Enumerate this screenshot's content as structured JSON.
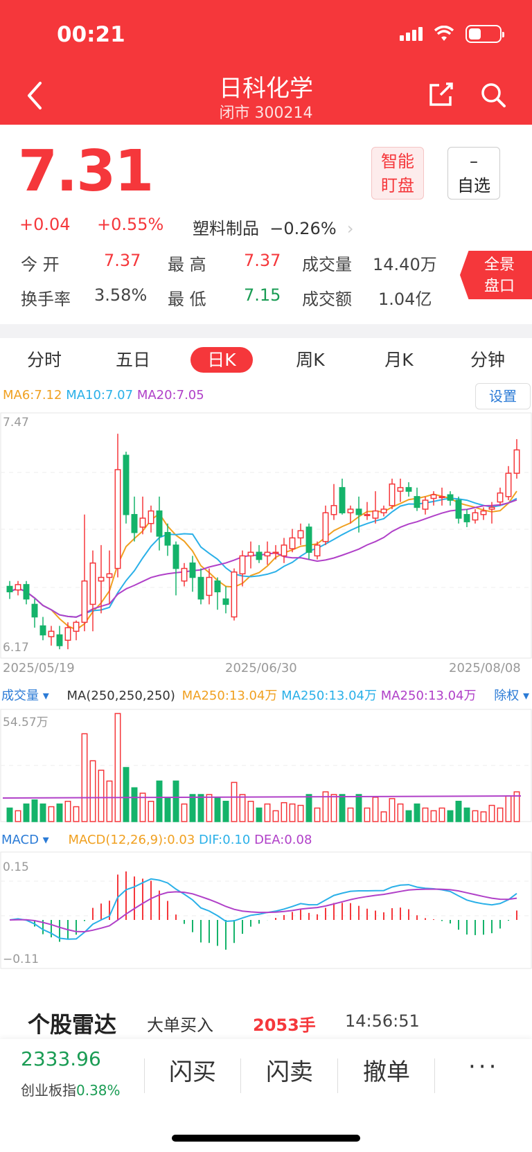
{
  "status": {
    "time": "00:21"
  },
  "header": {
    "title": "日科化学",
    "subtitle": "闭市 300214"
  },
  "quote": {
    "price": "7.31",
    "change": "+0.04",
    "change_pct": "+0.55%",
    "sector": "塑料制品",
    "sector_pct": "−0.26%",
    "smart_watch": [
      "智能",
      "盯盘"
    ],
    "watchlist": [
      "–",
      "自选"
    ],
    "open_label": "今  开",
    "open": "7.37",
    "high_label": "最  高",
    "high": "7.37",
    "vol_label": "成交量",
    "vol": "14.40万",
    "turnover_label": "换手率",
    "turnover": "3.58%",
    "low_label": "最  低",
    "low": "7.15",
    "amount_label": "成交额",
    "amount": "1.04亿",
    "panorama": [
      "全景",
      "盘口"
    ]
  },
  "tabs": [
    "分时",
    "五日",
    "日K",
    "周K",
    "月K",
    "分钟"
  ],
  "active_tab": 2,
  "ma": {
    "ma6": "MA6:7.12",
    "ma10": "MA10:7.07",
    "ma20": "MA20:7.05",
    "settings": "设置"
  },
  "volume_header": {
    "label": "成交量 ▾",
    "ma": "MA(250,250,250)",
    "ma1": "MA250:13.04万",
    "ma2": "MA250:13.04万",
    "ma3": "MA250:13.04万",
    "adjust": "除权 ▾"
  },
  "macd_header": {
    "label": "MACD ▾",
    "macd": "MACD(12,26,9):0.03",
    "dif": "DIF:0.10",
    "dea": "DEA:0.08"
  },
  "chart_data": {
    "type": "candlestick",
    "ylim": [
      6.17,
      7.47
    ],
    "y_labels": [
      "7.47",
      "6.17"
    ],
    "x_labels": [
      "2025/05/19",
      "2025/06/30",
      "2025/08/08"
    ],
    "volume_max_label": "54.57万",
    "macd_labels": [
      "0.15",
      "−0.11"
    ],
    "candles": [
      [
        6.55,
        6.58,
        6.48,
        6.52
      ],
      [
        6.53,
        6.58,
        6.5,
        6.56
      ],
      [
        6.56,
        6.58,
        6.45,
        6.48
      ],
      [
        6.45,
        6.48,
        6.32,
        6.38
      ],
      [
        6.33,
        6.38,
        6.25,
        6.28
      ],
      [
        6.27,
        6.33,
        6.22,
        6.3
      ],
      [
        6.28,
        6.33,
        6.2,
        6.22
      ],
      [
        6.25,
        6.35,
        6.2,
        6.32
      ],
      [
        6.3,
        6.36,
        6.25,
        6.35
      ],
      [
        6.35,
        6.95,
        6.3,
        6.58
      ],
      [
        6.45,
        6.75,
        6.3,
        6.68
      ],
      [
        6.58,
        6.78,
        6.4,
        6.6
      ],
      [
        6.6,
        6.75,
        6.45,
        6.62
      ],
      [
        6.65,
        7.4,
        6.6,
        7.2
      ],
      [
        7.28,
        7.3,
        6.9,
        6.95
      ],
      [
        6.95,
        7.05,
        6.8,
        6.85
      ],
      [
        6.88,
        7.05,
        6.84,
        6.93
      ],
      [
        6.9,
        7.0,
        6.85,
        6.97
      ],
      [
        6.97,
        7.05,
        6.75,
        6.83
      ],
      [
        6.85,
        6.9,
        6.72,
        6.78
      ],
      [
        6.78,
        6.8,
        6.5,
        6.65
      ],
      [
        6.58,
        6.68,
        6.55,
        6.65
      ],
      [
        6.68,
        6.72,
        6.52,
        6.6
      ],
      [
        6.6,
        6.65,
        6.45,
        6.48
      ],
      [
        6.5,
        6.65,
        6.45,
        6.6
      ],
      [
        6.58,
        6.6,
        6.42,
        6.52
      ],
      [
        6.48,
        6.55,
        6.4,
        6.45
      ],
      [
        6.38,
        6.65,
        6.36,
        6.63
      ],
      [
        6.62,
        6.75,
        6.55,
        6.72
      ],
      [
        6.72,
        6.8,
        6.65,
        6.74
      ],
      [
        6.74,
        6.78,
        6.68,
        6.7
      ],
      [
        6.72,
        6.8,
        6.67,
        6.74
      ],
      [
        6.74,
        6.78,
        6.7,
        6.74
      ],
      [
        6.72,
        6.82,
        6.68,
        6.78
      ],
      [
        6.76,
        6.87,
        6.74,
        6.82
      ],
      [
        6.82,
        6.9,
        6.78,
        6.86
      ],
      [
        6.88,
        6.9,
        6.7,
        6.74
      ],
      [
        6.72,
        6.8,
        6.7,
        6.78
      ],
      [
        6.8,
        7.0,
        6.78,
        6.96
      ],
      [
        6.95,
        7.12,
        6.92,
        7.0
      ],
      [
        7.1,
        7.15,
        6.95,
        6.96
      ],
      [
        6.96,
        7.0,
        6.9,
        6.98
      ],
      [
        6.98,
        7.05,
        6.85,
        6.95
      ],
      [
        6.95,
        7.02,
        6.92,
        6.95
      ],
      [
        6.93,
        7.08,
        6.9,
        6.97
      ],
      [
        6.96,
        7.0,
        6.94,
        6.98
      ],
      [
        7.0,
        7.15,
        6.98,
        7.12
      ],
      [
        7.08,
        7.15,
        7.02,
        7.1
      ],
      [
        7.1,
        7.13,
        7.05,
        7.08
      ],
      [
        7.05,
        7.1,
        6.97,
        6.99
      ],
      [
        6.98,
        7.05,
        6.95,
        7.03
      ],
      [
        7.04,
        7.08,
        7.0,
        7.06
      ],
      [
        7.05,
        7.1,
        7.0,
        7.05
      ],
      [
        7.06,
        7.08,
        7.0,
        7.03
      ],
      [
        7.03,
        7.05,
        6.9,
        6.93
      ],
      [
        6.95,
        6.98,
        6.88,
        6.91
      ],
      [
        6.92,
        6.98,
        6.9,
        6.96
      ],
      [
        6.95,
        6.99,
        6.92,
        6.97
      ],
      [
        6.98,
        7.02,
        6.9,
        6.99
      ],
      [
        7.02,
        7.1,
        7.0,
        7.07
      ],
      [
        7.05,
        7.22,
        7.03,
        7.18
      ],
      [
        7.18,
        7.37,
        7.15,
        7.31
      ]
    ]
  }
}
